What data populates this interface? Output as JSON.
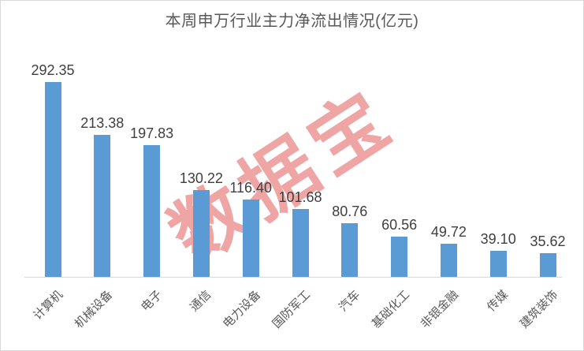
{
  "title": "本周申万行业主力净流出情况(亿元)",
  "watermark": {
    "text": "数据宝",
    "angle_deg": -33,
    "color": "#DD2E2E",
    "opacity": 0.43
  },
  "colors": {
    "bar": "#5B9BD5",
    "title_text": "#595959",
    "value_label_text": "#3F3F3F",
    "category_label_text": "#595959",
    "axis_line": "#D9D9D9",
    "frame_border": "#D9D9D9"
  },
  "chart_data": {
    "type": "bar",
    "title": "本周申万行业主力净流出情况(亿元)",
    "unit": "亿元",
    "categories": [
      "计算机",
      "机械设备",
      "电子",
      "通信",
      "电力设备",
      "国防军工",
      "汽车",
      "基础化工",
      "非银金融",
      "传媒",
      "建筑装饰"
    ],
    "values": [
      292.35,
      213.38,
      197.83,
      130.22,
      116.4,
      101.68,
      80.76,
      60.56,
      49.72,
      39.1,
      35.62
    ],
    "value_labels": [
      "292.35",
      "213.38",
      "197.83",
      "130.22",
      "116.40",
      "101.68",
      "80.76",
      "60.56",
      "49.72",
      "39.10",
      "35.62"
    ],
    "ylim": [
      0,
      310
    ],
    "grid": false,
    "legend": false,
    "y_axis_visible": false,
    "bar_color": "#5B9BD5",
    "data_labels": true,
    "category_label_rotation_deg": 45,
    "watermark_text": "数据宝"
  }
}
